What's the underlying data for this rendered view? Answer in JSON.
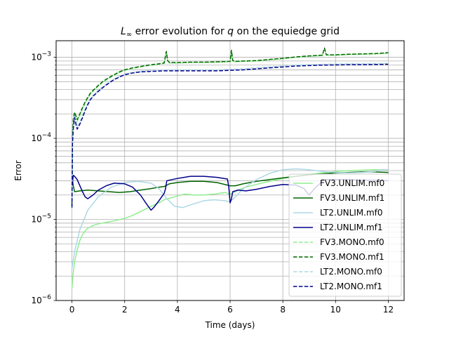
{
  "chart_data": {
    "type": "line",
    "title": "L∞ error evolution for q on the equiedge grid",
    "title_parts": {
      "symbol": "L",
      "symbol_sub": "∞",
      "before_var": " error evolution for ",
      "var": "q",
      "after_var": " on the equiedge grid"
    },
    "xlabel": "Time (days)",
    "ylabel": "Error",
    "xlim": [
      -0.6,
      12.6
    ],
    "ylim": [
      1e-06,
      0.0016
    ],
    "yscale": "log",
    "xticks": [
      0,
      2,
      4,
      6,
      8,
      10,
      12
    ],
    "xtick_labels": [
      "0",
      "2",
      "4",
      "6",
      "8",
      "10",
      "12"
    ],
    "yticks": [
      1e-06,
      1e-05,
      0.0001,
      0.001
    ],
    "ytick_labels": [
      {
        "base": "10",
        "exp": "−6"
      },
      {
        "base": "10",
        "exp": "−5"
      },
      {
        "base": "10",
        "exp": "−4"
      },
      {
        "base": "10",
        "exp": "−3"
      }
    ],
    "grid": true,
    "legend_position": "lower right",
    "series": [
      {
        "name": "FV3.UNLIM.mf0",
        "color": "#90ee90",
        "dash": "solid",
        "x": [
          0,
          0.05,
          0.1,
          0.2,
          0.3,
          0.4,
          0.5,
          0.6,
          0.8,
          1.0,
          1.3,
          1.6,
          2.0,
          2.3,
          2.6,
          3.0,
          3.3,
          3.5,
          3.7,
          3.9,
          4.1,
          4.3,
          4.6,
          5.0,
          5.4,
          5.8,
          6.0,
          6.2,
          6.5,
          7.0,
          7.5,
          8.0,
          8.5,
          9.0,
          9.5,
          10.0,
          10.5,
          11.0,
          11.5,
          12.0
        ],
        "y": [
          1.4e-06,
          2.2e-06,
          3e-06,
          4.2e-06,
          5.5e-06,
          6.5e-06,
          7.2e-06,
          7.8e-06,
          8.4e-06,
          8.8e-06,
          9.2e-06,
          9.6e-06,
          1.03e-05,
          1.12e-05,
          1.25e-05,
          1.45e-05,
          1.6e-05,
          1.75e-05,
          1.82e-05,
          1.9e-05,
          2e-05,
          2.05e-05,
          2e-05,
          2e-05,
          2.05e-05,
          2.15e-05,
          2.05e-05,
          2.2e-05,
          2.45e-05,
          2.7e-05,
          2.95e-05,
          3.2e-05,
          3.4e-05,
          3.6e-05,
          3.75e-05,
          3.9e-05,
          4e-05,
          4.05e-05,
          4.1e-05,
          4.1e-05
        ]
      },
      {
        "name": "FV3.UNLIM.mf1",
        "color": "#006400",
        "dash": "solid",
        "x": [
          0,
          0.05,
          0.1,
          0.3,
          0.6,
          1.0,
          1.4,
          1.8,
          2.2,
          2.6,
          3.0,
          3.3,
          3.5,
          3.7,
          4.0,
          4.5,
          5.0,
          5.5,
          6.0,
          6.2,
          6.5,
          7.0,
          7.5,
          8.0,
          8.5,
          9.0,
          9.5,
          10.0,
          10.5,
          11.0,
          11.5,
          12.0
        ],
        "y": [
          3.5e-05,
          2.6e-05,
          2.2e-05,
          2.25e-05,
          2.3e-05,
          2.25e-05,
          2.2e-05,
          2.15e-05,
          2.2e-05,
          2.3e-05,
          2.4e-05,
          2.5e-05,
          2.55e-05,
          2.75e-05,
          2.85e-05,
          2.95e-05,
          2.95e-05,
          2.85e-05,
          2.6e-05,
          2.6e-05,
          2.75e-05,
          2.95e-05,
          3.1e-05,
          3.25e-05,
          3.4e-05,
          3.55e-05,
          3.65e-05,
          3.75e-05,
          3.8e-05,
          3.85e-05,
          3.85e-05,
          3.8e-05
        ]
      },
      {
        "name": "LT2.UNLIM.mf0",
        "color": "#add8e6",
        "dash": "solid",
        "x": [
          0,
          0.1,
          0.3,
          0.6,
          1.0,
          1.5,
          2.0,
          2.5,
          3.0,
          3.3,
          3.6,
          3.9,
          4.2,
          4.6,
          5.0,
          5.4,
          5.8,
          6.0,
          6.2,
          6.5,
          7.0,
          7.5,
          8.0,
          8.5,
          9.0,
          9.5,
          10.0,
          10.5,
          11.0,
          11.5,
          11.7,
          12.0
        ],
        "y": [
          2.5e-06,
          4e-06,
          7.5e-06,
          1.3e-05,
          1.9e-05,
          2.5e-05,
          2.85e-05,
          2.95e-05,
          2.8e-05,
          2.4e-05,
          1.8e-05,
          1.45e-05,
          1.4e-05,
          1.55e-05,
          1.7e-05,
          1.75e-05,
          1.7e-05,
          1.65e-05,
          1.9e-05,
          2.4e-05,
          3.1e-05,
          3.7e-05,
          4.1e-05,
          4.2e-05,
          4.1e-05,
          3.9e-05,
          3.8e-05,
          3.75e-05,
          3.8e-05,
          3.9e-05,
          4.1e-05,
          4.1e-05
        ]
      },
      {
        "name": "LT2.UNLIM.mf1",
        "color": "#00008b",
        "dash": "solid",
        "x": [
          0,
          0.05,
          0.1,
          0.2,
          0.3,
          0.4,
          0.5,
          0.6,
          0.8,
          1.0,
          1.3,
          1.6,
          2.0,
          2.3,
          2.6,
          2.8,
          3.0,
          3.1,
          3.3,
          3.5,
          3.55,
          3.6,
          4.0,
          4.5,
          5.0,
          5.5,
          5.9,
          5.95,
          6.0,
          6.05,
          6.1,
          6.3,
          6.6,
          7.0,
          7.5,
          8.0,
          8.5,
          8.8,
          9.0,
          9.2,
          9.4,
          9.5,
          10.0,
          10.5,
          11.0,
          11.5,
          12.0
        ],
        "y": [
          2.5e-05,
          3.5e-05,
          3.4e-05,
          3.1e-05,
          2.6e-05,
          2.2e-05,
          1.9e-05,
          1.8e-05,
          2e-05,
          2.3e-05,
          2.6e-05,
          2.8e-05,
          2.75e-05,
          2.5e-05,
          2e-05,
          1.6e-05,
          1.3e-05,
          1.4e-05,
          1.7e-05,
          2.1e-05,
          2.4e-05,
          3e-05,
          3.2e-05,
          3.4e-05,
          3.4e-05,
          3.3e-05,
          3.15e-05,
          2.5e-05,
          1.6e-05,
          1.8e-05,
          2.2e-05,
          2.3e-05,
          2.25e-05,
          2.35e-05,
          2.55e-05,
          2.7e-05,
          2.65e-05,
          2.4e-05,
          2e-05,
          2.4e-05,
          2.75e-05,
          3.1e-05,
          3.1e-05,
          3.1e-05,
          3.05e-05,
          3.05e-05,
          3e-05
        ]
      },
      {
        "name": "FV3.MONO.mf0",
        "color": "#90ee90",
        "dash": "dashed",
        "x": [
          0,
          0.02,
          0.05,
          0.1,
          0.15,
          0.2,
          0.3,
          0.4,
          0.5,
          0.6,
          0.7,
          0.8,
          1.0,
          1.2,
          1.4,
          1.6,
          1.8,
          2.0,
          2.3,
          2.6,
          3.0,
          3.3,
          3.5,
          3.58,
          3.63,
          3.7,
          4.0,
          4.5,
          5.0,
          5.5,
          6.0,
          6.05,
          6.1,
          6.2,
          6.5,
          7.0,
          7.5,
          8.0,
          8.5,
          9.0,
          9.5,
          9.58,
          9.65,
          10.0,
          10.5,
          11.0,
          11.5,
          12.0
        ],
        "y": [
          2e-05,
          0.0001,
          0.00016,
          0.0002,
          0.00018,
          0.00016,
          0.00019,
          0.00023,
          0.00027,
          0.00031,
          0.00035,
          0.00038,
          0.00044,
          0.0005,
          0.00055,
          0.0006,
          0.00065,
          0.00069,
          0.00073,
          0.00076,
          0.0008,
          0.00082,
          0.00084,
          0.0012,
          0.0009,
          0.00085,
          0.00085,
          0.00086,
          0.00086,
          0.00087,
          0.00088,
          0.0012,
          0.0009,
          0.00088,
          0.00089,
          0.0009,
          0.00093,
          0.00096,
          0.001,
          0.00103,
          0.00105,
          0.00128,
          0.00106,
          0.00106,
          0.00108,
          0.00109,
          0.0011,
          0.00112
        ]
      },
      {
        "name": "FV3.MONO.mf1",
        "color": "#006400",
        "dash": "dashed",
        "x": [
          0,
          0.02,
          0.05,
          0.1,
          0.15,
          0.2,
          0.3,
          0.4,
          0.5,
          0.6,
          0.7,
          0.8,
          1.0,
          1.2,
          1.4,
          1.6,
          1.8,
          2.0,
          2.3,
          2.6,
          3.0,
          3.3,
          3.5,
          3.58,
          3.63,
          3.7,
          4.0,
          4.5,
          5.0,
          5.5,
          6.0,
          6.05,
          6.1,
          6.2,
          6.5,
          7.0,
          7.5,
          8.0,
          8.5,
          9.0,
          9.5,
          9.58,
          9.65,
          10.0,
          10.5,
          11.0,
          11.5,
          12.0
        ],
        "y": [
          1.5e-05,
          0.00011,
          0.00017,
          0.00021,
          0.00019,
          0.00017,
          0.0002,
          0.00024,
          0.00028,
          0.00032,
          0.00036,
          0.00039,
          0.00045,
          0.00051,
          0.00056,
          0.00061,
          0.00066,
          0.0007,
          0.00074,
          0.00077,
          0.00081,
          0.00083,
          0.00085,
          0.00118,
          0.00091,
          0.00086,
          0.00086,
          0.00087,
          0.00087,
          0.00088,
          0.00089,
          0.00122,
          0.00091,
          0.00089,
          0.0009,
          0.00091,
          0.00094,
          0.00097,
          0.00101,
          0.00104,
          0.00106,
          0.0013,
          0.00107,
          0.00107,
          0.00109,
          0.0011,
          0.00111,
          0.00114
        ]
      },
      {
        "name": "LT2.MONO.mf0",
        "color": "#add8e6",
        "dash": "dashed",
        "x": [
          0,
          0.02,
          0.05,
          0.1,
          0.15,
          0.2,
          0.3,
          0.4,
          0.5,
          0.6,
          0.7,
          0.8,
          1.0,
          1.2,
          1.4,
          1.6,
          1.8,
          2.0,
          2.3,
          2.6,
          3.0,
          3.5,
          4.0,
          4.5,
          5.0,
          5.5,
          6.0,
          6.5,
          7.0,
          7.5,
          8.0,
          8.5,
          9.0,
          9.5,
          10.0,
          10.5,
          11.0,
          11.5,
          12.0
        ],
        "y": [
          1.8e-05,
          9e-05,
          0.00014,
          0.00019,
          0.00016,
          0.00014,
          0.00016,
          0.00019,
          0.00023,
          0.00027,
          0.00031,
          0.00034,
          0.00039,
          0.00044,
          0.00049,
          0.00054,
          0.00058,
          0.00062,
          0.00065,
          0.00067,
          0.00069,
          0.0007,
          0.0007,
          0.0007,
          0.0007,
          0.0007,
          0.00071,
          0.00072,
          0.00074,
          0.00076,
          0.00078,
          0.0008,
          0.00081,
          0.00082,
          0.000825,
          0.00083,
          0.00083,
          0.000835,
          0.00084
        ]
      },
      {
        "name": "LT2.MONO.mf1",
        "color": "#00008b",
        "dash": "dashed",
        "x": [
          0,
          0.02,
          0.05,
          0.1,
          0.15,
          0.2,
          0.3,
          0.4,
          0.5,
          0.6,
          0.7,
          0.8,
          1.0,
          1.2,
          1.4,
          1.6,
          1.8,
          2.0,
          2.3,
          2.6,
          3.0,
          3.5,
          4.0,
          4.5,
          5.0,
          5.5,
          6.0,
          6.5,
          7.0,
          7.5,
          8.0,
          8.5,
          9.0,
          9.5,
          10.0,
          10.5,
          11.0,
          11.5,
          12.0
        ],
        "y": [
          1.4e-05,
          8.5e-05,
          0.00013,
          0.00018,
          0.00015,
          0.00013,
          0.00015,
          0.00018,
          0.00022,
          0.00026,
          0.0003,
          0.00033,
          0.00038,
          0.00043,
          0.00048,
          0.00053,
          0.00057,
          0.00061,
          0.00064,
          0.00066,
          0.00067,
          0.00068,
          0.00068,
          0.00068,
          0.00068,
          0.00068,
          0.00069,
          0.0007,
          0.00072,
          0.00074,
          0.00076,
          0.00078,
          0.00079,
          0.0008,
          0.000805,
          0.00081,
          0.00081,
          0.000815,
          0.00082
        ]
      }
    ]
  }
}
